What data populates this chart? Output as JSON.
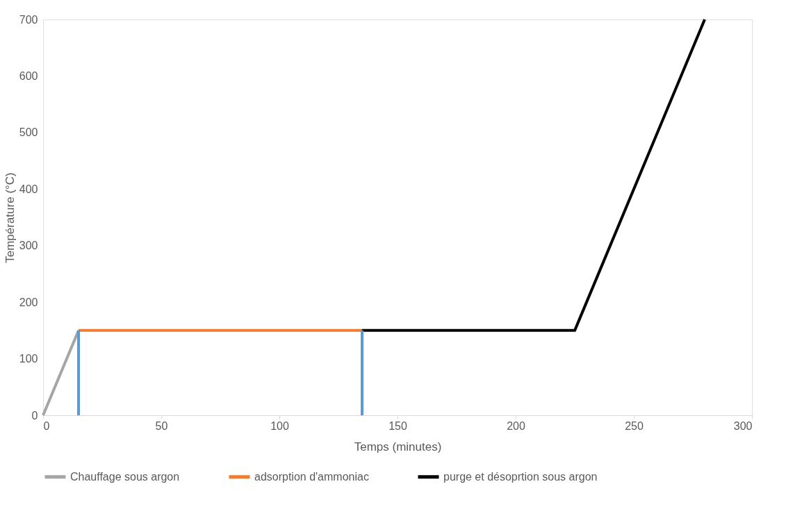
{
  "chart_data": {
    "type": "line",
    "xlabel": "Temps (minutes)",
    "ylabel": "Température (°C)",
    "xlim": [
      0,
      300
    ],
    "xticks": [
      0,
      50,
      100,
      150,
      200,
      250,
      300
    ],
    "ylim": [
      0,
      700
    ],
    "yticks": [
      0,
      100,
      200,
      300,
      400,
      500,
      600,
      700
    ],
    "grid": false,
    "legend": "bottom",
    "marker": "none",
    "line_style": "solid",
    "series": [
      {
        "name": "Chauffage sous argon",
        "color": "#a5a5a5",
        "x": [
          0,
          15
        ],
        "values": [
          0,
          150
        ]
      },
      {
        "name": "adsorption d'ammoniac",
        "color": "#ed7d31",
        "x": [
          15,
          135
        ],
        "values": [
          150,
          150
        ]
      },
      {
        "name": "purge et désoprtion sous argon",
        "color": "#000000",
        "x": [
          135,
          225,
          280
        ],
        "values": [
          150,
          150,
          700
        ]
      },
      {
        "color": "#5b9bd5",
        "x": [
          15,
          15
        ],
        "values": [
          0,
          150
        ]
      },
      {
        "color": "#5b9bd5",
        "x": [
          135,
          135
        ],
        "values": [
          0,
          150
        ]
      }
    ]
  }
}
